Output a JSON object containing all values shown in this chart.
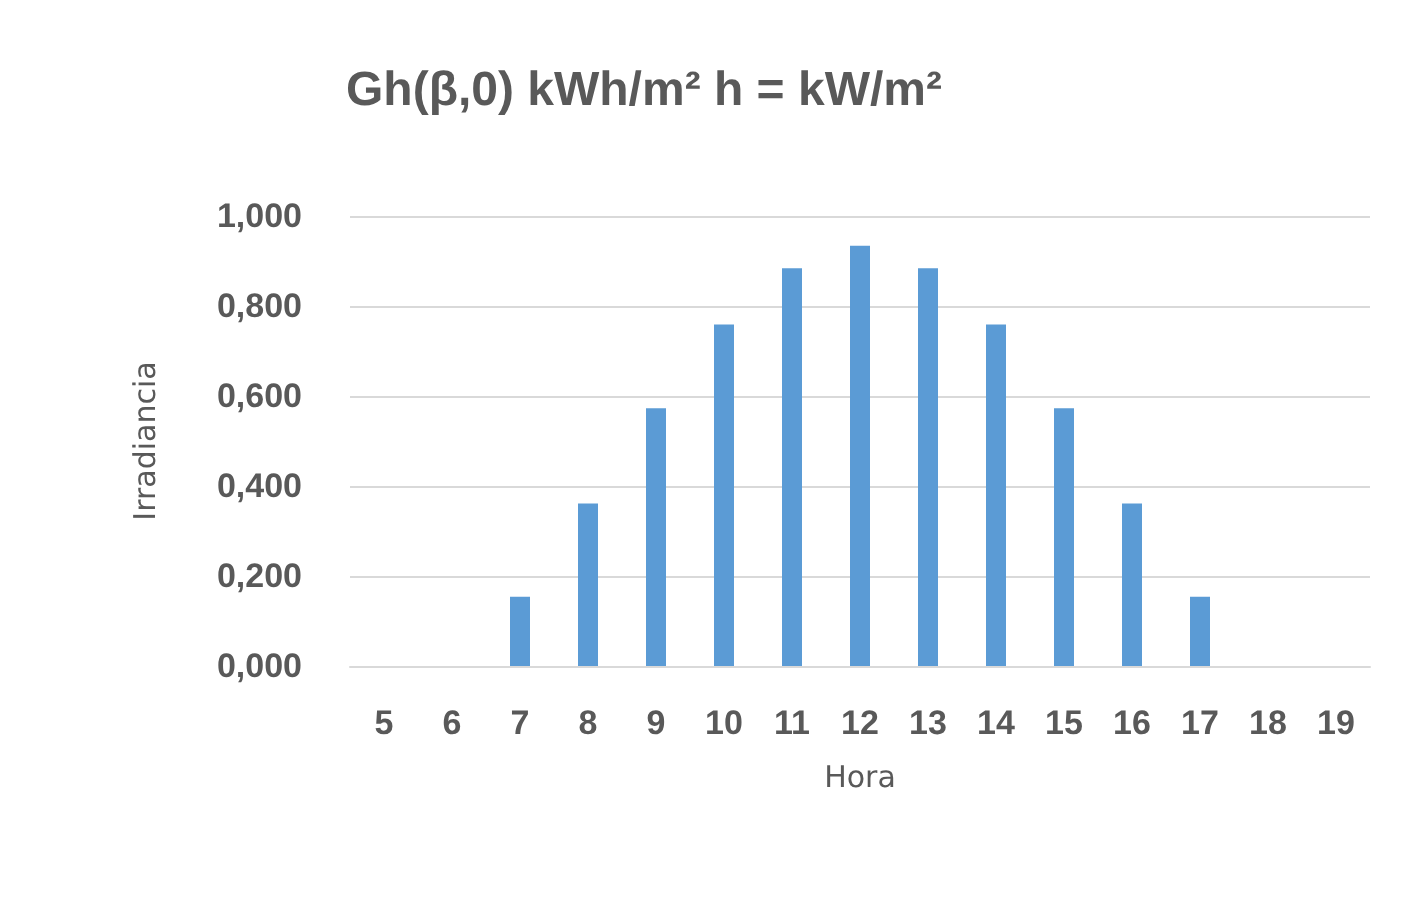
{
  "chart_data": {
    "type": "bar",
    "title": "Gh(β,0) kWh/m² h = kW/m²",
    "xlabel": "Hora",
    "ylabel": "Irradiancia",
    "categories": [
      "5",
      "6",
      "7",
      "8",
      "9",
      "10",
      "11",
      "12",
      "13",
      "14",
      "15",
      "16",
      "17",
      "18",
      "19"
    ],
    "values": [
      null,
      null,
      0.154,
      0.361,
      0.573,
      0.759,
      0.884,
      0.934,
      0.884,
      0.759,
      0.573,
      0.361,
      0.154,
      null,
      null
    ],
    "color": "#5b9bd5",
    "ylim": [
      0,
      1
    ],
    "yticks": [
      {
        "value": 0,
        "label": "0,000"
      },
      {
        "value": 0.2,
        "label": "0,200"
      },
      {
        "value": 0.4,
        "label": "0,400"
      },
      {
        "value": 0.6,
        "label": "0,600"
      },
      {
        "value": 0.8,
        "label": "0,800"
      },
      {
        "value": 1,
        "label": "1,000"
      }
    ],
    "grid": "y"
  }
}
